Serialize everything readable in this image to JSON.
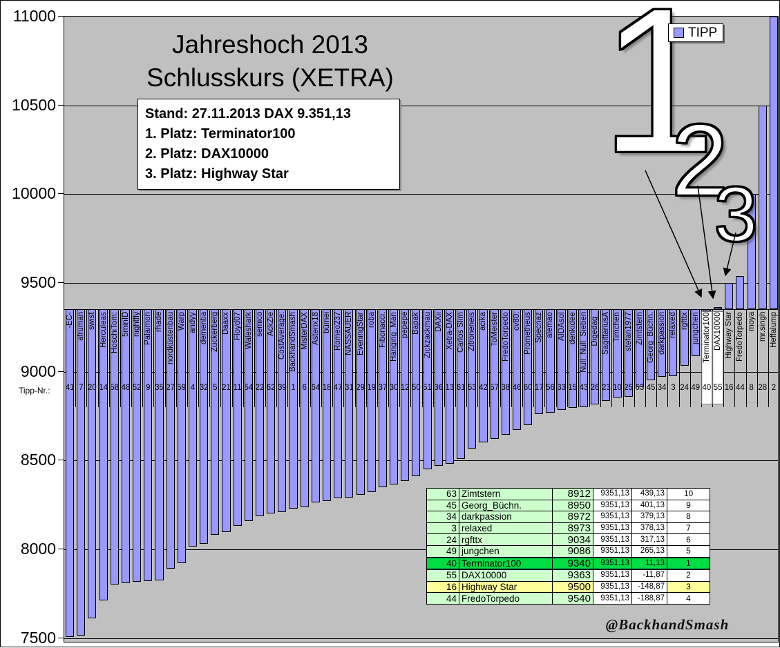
{
  "chart_data": {
    "type": "bar",
    "title_line1": "Jahreshoch 2013",
    "title_line2": "Schlusskurs (XETRA)",
    "legend": {
      "label": "TIPP",
      "marker_color": "#9999ff"
    },
    "ylabel": "",
    "xlabel_row_caption": "Tipp-Nr.:",
    "y_axis": {
      "min": 7500,
      "max": 11000,
      "step": 500,
      "ticks": [
        11000,
        10500,
        10000,
        9500,
        9000,
        8500,
        8000,
        7500
      ]
    },
    "x_axis_cross_value": 9351.13,
    "grid": true,
    "legend_position": "top-right",
    "colors": {
      "bar_fill": "#9999ff",
      "bar_border": "#000000",
      "plot_bg": "#c0c0c0",
      "grid": "#000000"
    },
    "highlighted_label_names": [
      "Terminator100",
      "DAX10000"
    ],
    "bars": [
      {
        "tipp_nr": 41,
        "name": "-EC-",
        "value": 7505
      },
      {
        "tipp_nr": 7,
        "name": "afruman",
        "value": 7515
      },
      {
        "tipp_nr": 20,
        "name": "swist",
        "value": 7610
      },
      {
        "tipp_nr": 14,
        "name": "Herculeas",
        "value": 7710
      },
      {
        "tipp_nr": 58,
        "name": "HoschiTom:",
        "value": 7800
      },
      {
        "tipp_nr": 48,
        "name": "5minID",
        "value": 7810
      },
      {
        "tipp_nr": 52,
        "name": "nightfly",
        "value": 7815
      },
      {
        "tipp_nr": 9,
        "name": "Palaimon",
        "value": 7820
      },
      {
        "tipp_nr": 35,
        "name": "rhade",
        "value": 7825
      },
      {
        "tipp_nr": 27,
        "name": "nordküstenbau",
        "value": 7890
      },
      {
        "tipp_nr": 59,
        "name": "Warp",
        "value": 7920
      },
      {
        "tipp_nr": 4,
        "name": "andyy",
        "value": 8015
      },
      {
        "tipp_nr": 32,
        "name": "dementia",
        "value": 8030
      },
      {
        "tipp_nr": 5,
        "name": "Zuckerberg",
        "value": 8080
      },
      {
        "tipp_nr": 21,
        "name": "Daaxx",
        "value": 8095
      },
      {
        "tipp_nr": 11,
        "name": "Floyd07",
        "value": 8130
      },
      {
        "tipp_nr": 54,
        "name": "Waleshark",
        "value": 8160
      },
      {
        "tipp_nr": 22,
        "name": "semico",
        "value": 8185
      },
      {
        "tipp_nr": 62,
        "name": "AckZie",
        "value": 8200
      },
      {
        "tipp_nr": 39,
        "name": "CostAverage:",
        "value": 8210
      },
      {
        "tipp_nr": 1,
        "name": "BackhandSmash",
        "value": 8230
      },
      {
        "tipp_nr": 6,
        "name": "MisterDAX",
        "value": 8235
      },
      {
        "tipp_nr": 64,
        "name": "Asterix18",
        "value": 8265
      },
      {
        "tipp_nr": 18,
        "name": "bümei",
        "value": 8270
      },
      {
        "tipp_nr": 47,
        "name": "Romeo237",
        "value": 8285
      },
      {
        "tipp_nr": 31,
        "name": "NASSAUER",
        "value": 8290
      },
      {
        "tipp_nr": 29,
        "name": "EveningStar",
        "value": 8305
      },
      {
        "tipp_nr": 19,
        "name": "roba",
        "value": 8320
      },
      {
        "tipp_nr": 37,
        "name": "Fibonacci.",
        "value": 8350
      },
      {
        "tipp_nr": 30,
        "name": "Hanging_Man",
        "value": 8365
      },
      {
        "tipp_nr": 12,
        "name": "pepepe",
        "value": 8385
      },
      {
        "tipp_nr": 50,
        "name": "Bapak",
        "value": 8410
      },
      {
        "tipp_nr": 51,
        "name": "Zickzackmau",
        "value": 8450
      },
      {
        "tipp_nr": 36,
        "name": "DAXii",
        "value": 8470
      },
      {
        "tipp_nr": 13,
        "name": "Xetra-DAX",
        "value": 8480
      },
      {
        "tipp_nr": 61,
        "name": "Carlos Slim",
        "value": 8510
      },
      {
        "tipp_nr": 53,
        "name": "Zitroneneis",
        "value": 8565
      },
      {
        "tipp_nr": 42,
        "name": "acika",
        "value": 8600
      },
      {
        "tipp_nr": 57,
        "name": "ToMeister",
        "value": 8620
      },
      {
        "tipp_nr": 38,
        "name": "FredoTorpedo",
        "value": 8645
      },
      {
        "tipp_nr": 46,
        "name": "cv80:",
        "value": 8670
      },
      {
        "tipp_nr": 60,
        "name": "Prometheus",
        "value": 8700
      },
      {
        "tipp_nr": 17,
        "name": "Specnaz",
        "value": 8760
      },
      {
        "tipp_nr": 56,
        "name": "alemao",
        "value": 8770
      },
      {
        "tipp_nr": 33,
        "name": "AIDAsol",
        "value": 8785
      },
      {
        "tipp_nr": 15,
        "name": "denkidee",
        "value": 8795
      },
      {
        "tipp_nr": 43,
        "name": "Null_Null_Sieben",
        "value": 8800
      },
      {
        "tipp_nr": 26,
        "name": "_Digedag_",
        "value": 8815
      },
      {
        "tipp_nr": 23,
        "name": "SagittariusA",
        "value": 8835
      },
      {
        "tipp_nr": 10,
        "name": "Timchen",
        "value": 8855
      },
      {
        "tipp_nr": 25,
        "name": "stefan1977",
        "value": 8860
      },
      {
        "tipp_nr": 63,
        "name": "Zimtstern",
        "value": 8912
      },
      {
        "tipp_nr": 45,
        "name": "Georg_Büchn.",
        "value": 8950
      },
      {
        "tipp_nr": 34,
        "name": "darkpassion",
        "value": 8972
      },
      {
        "tipp_nr": 3,
        "name": "relaxed",
        "value": 8973
      },
      {
        "tipp_nr": 24,
        "name": "rgfttx",
        "value": 9034
      },
      {
        "tipp_nr": 49,
        "name": "jungchen",
        "value": 9086
      },
      {
        "tipp_nr": 40,
        "name": "Terminator100",
        "value": 9340
      },
      {
        "tipp_nr": 55,
        "name": "DAX10000",
        "value": 9363
      },
      {
        "tipp_nr": 16,
        "name": "Highway Star",
        "value": 9500
      },
      {
        "tipp_nr": 44,
        "name": "FredoTorpedo",
        "value": 9540
      },
      {
        "tipp_nr": 8,
        "name": "moya",
        "value": 10000
      },
      {
        "tipp_nr": 28,
        "name": "mr.singh",
        "value": 10500
      },
      {
        "tipp_nr": 2,
        "name": "Heffalump",
        "value": 11000
      }
    ]
  },
  "info_box": {
    "lines": [
      "Stand: 27.11.2013 DAX 9.351,13",
      "1. Platz: Terminator100",
      "2. Platz: DAX10000",
      "3. Platz: Highway Star"
    ]
  },
  "annotations": {
    "place1": "1",
    "place2": "2",
    "place3": "3"
  },
  "results_table": {
    "rows": [
      {
        "nr": "63",
        "name": "Zimtstern",
        "tipp": "8912",
        "dax": "9351,13",
        "diff": "439,13",
        "rank": "10",
        "style": "default"
      },
      {
        "nr": "45",
        "name": "Georg_Büchn.",
        "tipp": "8950",
        "dax": "9351,13",
        "diff": "401,13",
        "rank": "9",
        "style": "default"
      },
      {
        "nr": "34",
        "name": "darkpassion",
        "tipp": "8972",
        "dax": "9351,13",
        "diff": "379,13",
        "rank": "8",
        "style": "default"
      },
      {
        "nr": "3",
        "name": "relaxed",
        "tipp": "8973",
        "dax": "9351,13",
        "diff": "378,13",
        "rank": "7",
        "style": "default"
      },
      {
        "nr": "24",
        "name": "rgfttx",
        "tipp": "9034",
        "dax": "9351,13",
        "diff": "317,13",
        "rank": "6",
        "style": "default"
      },
      {
        "nr": "49",
        "name": "jungchen",
        "tipp": "9086",
        "dax": "9351,13",
        "diff": "265,13",
        "rank": "5",
        "style": "default"
      },
      {
        "nr": "40",
        "name": "Terminator100",
        "tipp": "9340",
        "dax": "9351,13",
        "diff": "11,13",
        "rank": "1",
        "style": "winner"
      },
      {
        "nr": "55",
        "name": "DAX10000",
        "tipp": "9363",
        "dax": "9351,13",
        "diff": "-11,87",
        "rank": "2",
        "style": "default"
      },
      {
        "nr": "16",
        "name": "Highway Star",
        "tipp": "9500",
        "dax": "9351,13",
        "diff": "-148,87",
        "rank": "3",
        "style": "third"
      },
      {
        "nr": "44",
        "name": "FredoTorpedo",
        "tipp": "9540",
        "dax": "9351,13",
        "diff": "-188,87",
        "rank": "4",
        "style": "default"
      }
    ]
  },
  "watermark": "@BackhandSmash"
}
